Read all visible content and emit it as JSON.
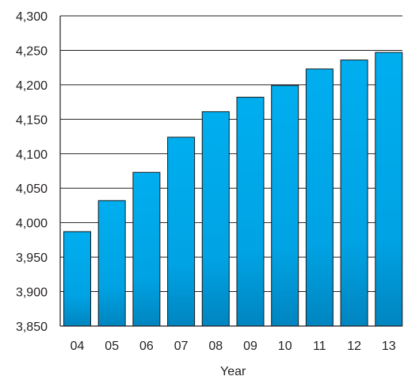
{
  "chart_data": {
    "type": "bar",
    "title": "",
    "xlabel": "Year",
    "ylabel": "",
    "categories": [
      "04",
      "05",
      "06",
      "07",
      "08",
      "09",
      "10",
      "11",
      "12",
      "13"
    ],
    "values": [
      3987,
      4032,
      4073,
      4124,
      4161,
      4182,
      4199,
      4223,
      4236,
      4247
    ],
    "ylim": [
      3850,
      4300
    ],
    "yticks": [
      3850,
      3900,
      3950,
      4000,
      4050,
      4100,
      4150,
      4200,
      4250,
      4300
    ],
    "ytick_labels": [
      "3,850",
      "3,900",
      "3,950",
      "4,000",
      "4,050",
      "4,100",
      "4,150",
      "4,200",
      "4,250",
      "4,300"
    ],
    "grid": true,
    "legend": "none",
    "colors": {
      "bar_top": "#00aeef",
      "bar_mid": "#00a3e4",
      "bar_bottom": "#0085c0",
      "bar_edge": "#1a1a1a",
      "axis": "#231f20",
      "grid": "#231f20"
    }
  }
}
